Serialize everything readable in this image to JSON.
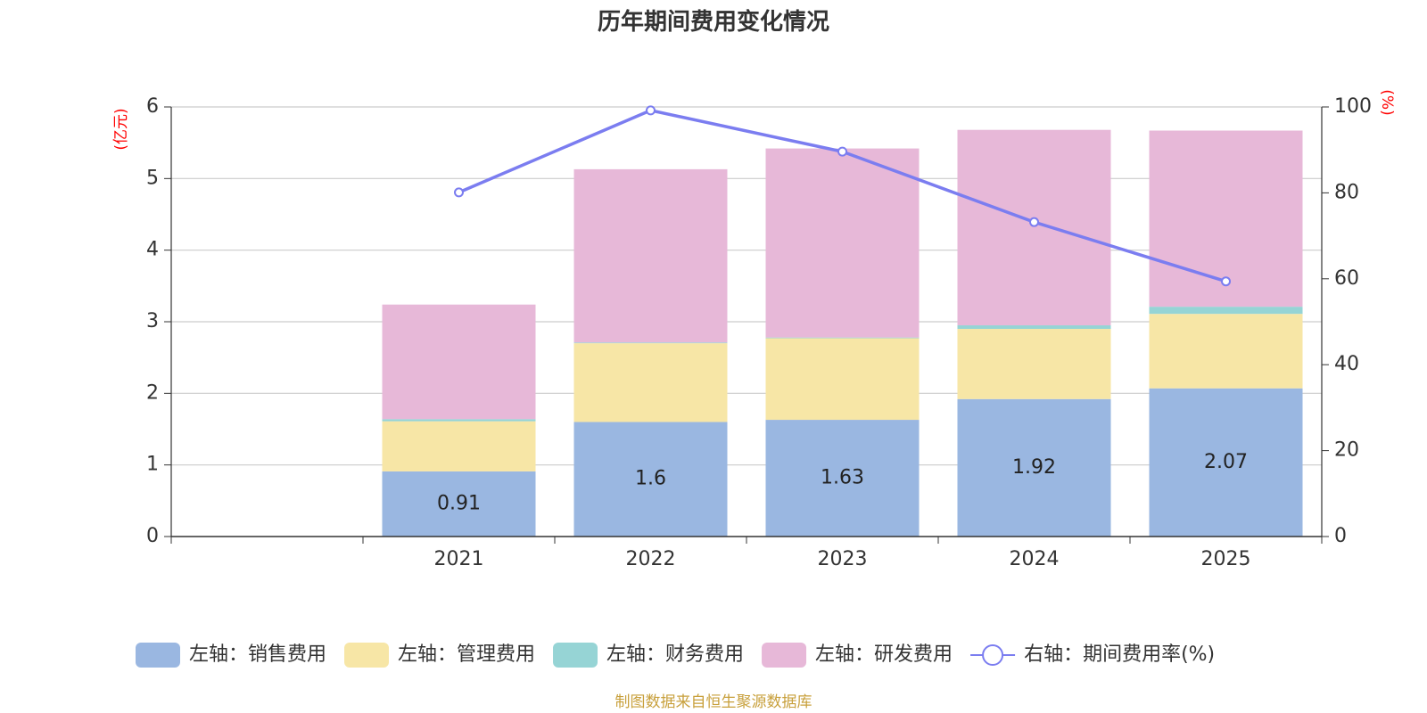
{
  "chart_data": {
    "type": "bar",
    "stacked": true,
    "title": "历年期间费用变化情况",
    "categories": [
      "",
      "2021",
      "2022",
      "2023",
      "2024",
      "2025"
    ],
    "y_left": {
      "unit": "(亿元)",
      "min": 0,
      "max": 6,
      "ticks": [
        "0",
        "1",
        "2",
        "3",
        "4",
        "5",
        "6"
      ]
    },
    "y_right": {
      "unit": "(%)",
      "min": 0,
      "max": 100,
      "ticks": [
        "0",
        "20",
        "40",
        "60",
        "80",
        "100"
      ]
    },
    "series": [
      {
        "name": "左轴：销售费用",
        "axis": "left",
        "color": "#9ab7e1",
        "values": [
          null,
          0.91,
          1.6,
          1.63,
          1.92,
          2.07
        ],
        "labels": [
          null,
          "0.91",
          "1.6",
          "1.63",
          "1.92",
          "2.07"
        ]
      },
      {
        "name": "左轴：管理费用",
        "axis": "left",
        "color": "#f7e6a6",
        "values": [
          null,
          0.7,
          1.1,
          1.14,
          0.98,
          1.04
        ]
      },
      {
        "name": "左轴：财务费用",
        "axis": "left",
        "color": "#96d4d5",
        "values": [
          null,
          0.03,
          0.01,
          0.01,
          0.05,
          0.1
        ]
      },
      {
        "name": "左轴：研发费用",
        "axis": "left",
        "color": "#e7b8d8",
        "values": [
          null,
          1.6,
          2.42,
          2.64,
          2.73,
          2.46
        ]
      }
    ],
    "line_series": {
      "name": "右轴：期间费用率(%)",
      "axis": "right",
      "color": "#7b7df0",
      "values": [
        null,
        80.1,
        99.2,
        89.6,
        73.2,
        59.4
      ]
    },
    "legend_position": "bottom",
    "grid": true
  },
  "source_note": "制图数据来自恒生聚源数据库"
}
